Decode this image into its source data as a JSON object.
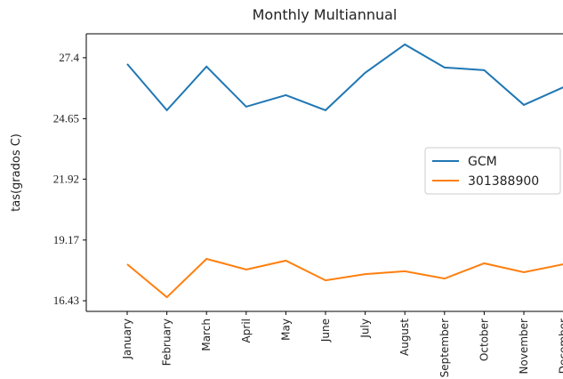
{
  "chart_data": {
    "type": "line",
    "title": "Monthly Multiannual",
    "y_label": "tas(grados C)",
    "categories": [
      "January",
      "February",
      "March",
      "April",
      "May",
      "June",
      "July",
      "August",
      "September",
      "October",
      "November",
      "December"
    ],
    "series": [
      {
        "name": "GCM",
        "color": "#1f77b4",
        "values": [
          27.12,
          25.03,
          27.0,
          25.19,
          25.71,
          25.03,
          26.72,
          28.0,
          26.96,
          26.84,
          25.27,
          26.07
        ]
      },
      {
        "name": "301388900",
        "color": "#ff7f0e",
        "values": [
          18.08,
          16.59,
          18.32,
          17.84,
          18.24,
          17.35,
          17.63,
          17.76,
          17.43,
          18.12,
          17.72,
          18.08
        ]
      }
    ],
    "ylim": [
      15.95,
      28.48
    ],
    "yticks": [
      16.43,
      19.17,
      21.92,
      24.65,
      27.4
    ],
    "legend": "center right"
  }
}
